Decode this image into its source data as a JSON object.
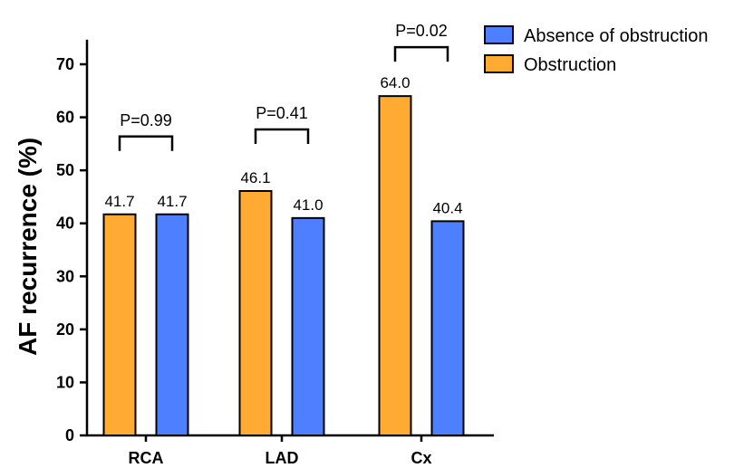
{
  "chart_data": {
    "type": "bar",
    "ylabel": "AF recurrence (%)",
    "xlabel": "",
    "ylim": [
      0,
      75
    ],
    "yticks": [
      0,
      10,
      20,
      30,
      40,
      50,
      60,
      70
    ],
    "categories": [
      "RCA",
      "LAD",
      "Cx"
    ],
    "series": [
      {
        "name": "Obstruction",
        "values": [
          41.7,
          46.1,
          64.0
        ],
        "labels": [
          "41.7",
          "46.1",
          "64.0"
        ],
        "color": "#FFAA33"
      },
      {
        "name": "Absence of obstruction",
        "values": [
          41.7,
          41.0,
          40.4
        ],
        "labels": [
          "41.7",
          "41.0",
          "40.4"
        ],
        "color": "#4D7FFF"
      }
    ],
    "p_values": [
      "P=0.99",
      "P=0.41",
      "P=0.02"
    ],
    "legend": {
      "placement": "top-right",
      "order": [
        "Absence of obstruction",
        "Obstruction"
      ]
    },
    "grid": false
  }
}
